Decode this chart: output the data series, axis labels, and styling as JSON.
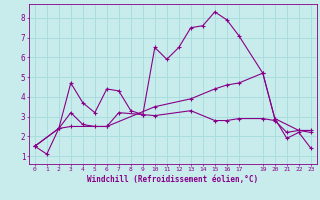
{
  "xlabel": "Windchill (Refroidissement éolien,°C)",
  "background_color": "#c8ecec",
  "grid_color": "#aadddd",
  "line_color": "#880088",
  "xticks": [
    0,
    1,
    2,
    3,
    4,
    5,
    6,
    7,
    8,
    9,
    10,
    11,
    12,
    13,
    14,
    15,
    16,
    17,
    19,
    20,
    21,
    22,
    23
  ],
  "yticks": [
    1,
    2,
    3,
    4,
    5,
    6,
    7,
    8
  ],
  "xlim": [
    -0.5,
    23.5
  ],
  "ylim": [
    0.6,
    8.7
  ],
  "series1": [
    [
      0,
      1.5
    ],
    [
      1,
      1.1
    ],
    [
      2,
      2.4
    ],
    [
      3,
      4.7
    ],
    [
      4,
      3.7
    ],
    [
      5,
      3.2
    ],
    [
      6,
      4.4
    ],
    [
      7,
      4.3
    ],
    [
      8,
      3.3
    ],
    [
      9,
      3.1
    ],
    [
      10,
      6.5
    ],
    [
      11,
      5.9
    ],
    [
      12,
      6.5
    ],
    [
      13,
      7.5
    ],
    [
      14,
      7.6
    ],
    [
      15,
      8.3
    ],
    [
      16,
      7.9
    ],
    [
      17,
      7.1
    ],
    [
      19,
      5.2
    ],
    [
      20,
      2.9
    ],
    [
      21,
      1.9
    ],
    [
      22,
      2.2
    ],
    [
      23,
      1.4
    ]
  ],
  "series2": [
    [
      0,
      1.5
    ],
    [
      2,
      2.4
    ],
    [
      3,
      3.2
    ],
    [
      4,
      2.6
    ],
    [
      5,
      2.5
    ],
    [
      6,
      2.5
    ],
    [
      7,
      3.2
    ],
    [
      9,
      3.1
    ],
    [
      10,
      3.05
    ],
    [
      13,
      3.3
    ],
    [
      15,
      2.8
    ],
    [
      16,
      2.8
    ],
    [
      17,
      2.9
    ],
    [
      19,
      2.9
    ],
    [
      20,
      2.8
    ],
    [
      21,
      2.2
    ],
    [
      22,
      2.3
    ],
    [
      23,
      2.2
    ]
  ],
  "series3": [
    [
      0,
      1.5
    ],
    [
      2,
      2.4
    ],
    [
      3,
      2.5
    ],
    [
      6,
      2.5
    ],
    [
      10,
      3.5
    ],
    [
      13,
      3.9
    ],
    [
      15,
      4.4
    ],
    [
      16,
      4.6
    ],
    [
      17,
      4.7
    ],
    [
      19,
      5.2
    ],
    [
      20,
      2.9
    ],
    [
      22,
      2.3
    ],
    [
      23,
      2.3
    ]
  ]
}
